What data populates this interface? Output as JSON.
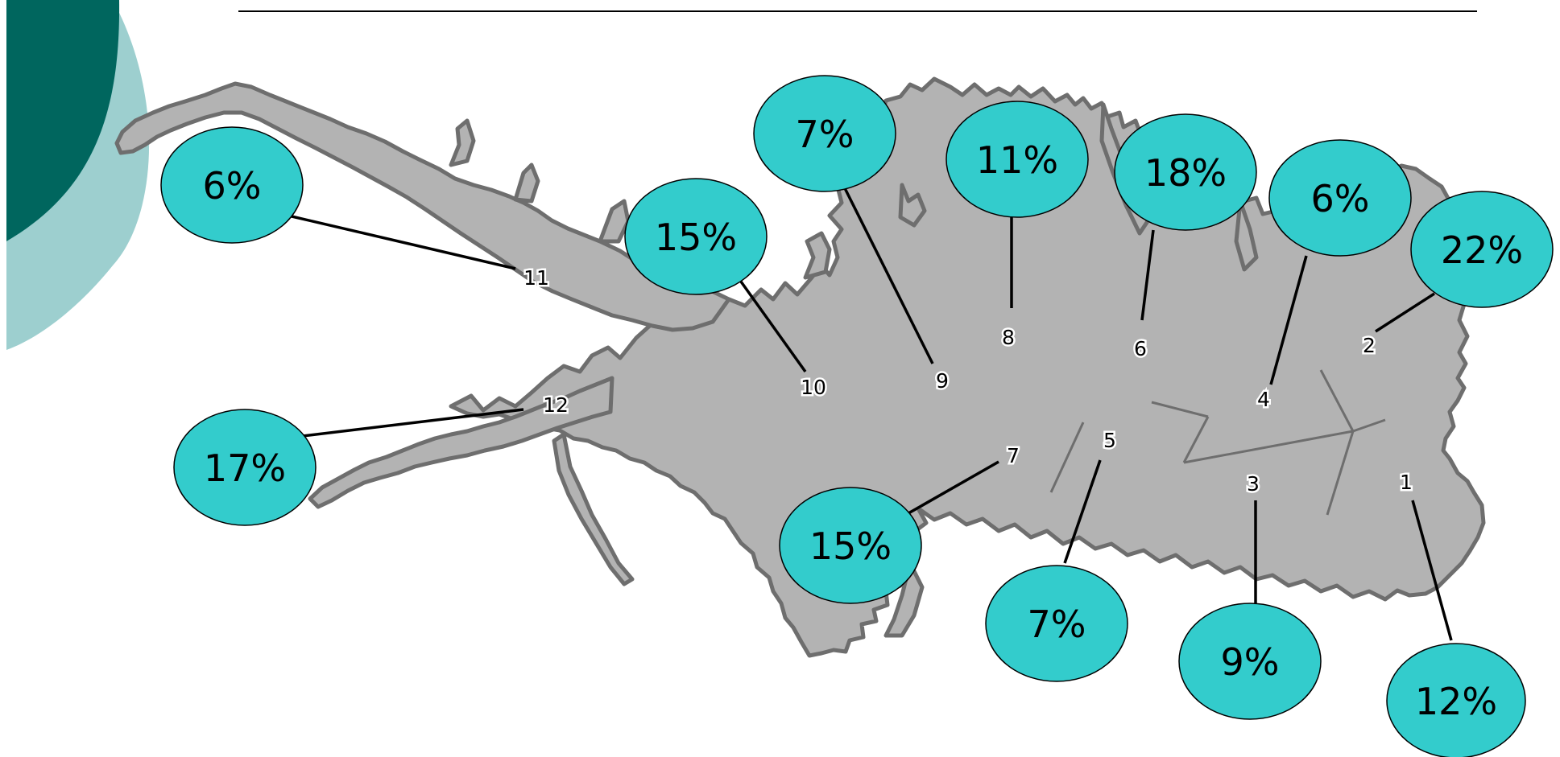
{
  "colors": {
    "background": "#ffffff",
    "corner_dark": "#00665e",
    "corner_light": "#9dcfcf",
    "title_rule": "#000000",
    "lake_fill": "#b3b3b3",
    "lake_edge": "#6e6e6e",
    "bubble_fill": "#33cccc",
    "bubble_stroke": "#000000",
    "leader_line": "#000000"
  },
  "zones": [
    {
      "id": "1",
      "percent": "12%"
    },
    {
      "id": "2",
      "percent": "22%"
    },
    {
      "id": "3",
      "percent": "9%"
    },
    {
      "id": "4",
      "percent": "6%"
    },
    {
      "id": "5",
      "percent": "7%"
    },
    {
      "id": "6",
      "percent": "18%"
    },
    {
      "id": "7",
      "percent": "15%"
    },
    {
      "id": "8",
      "percent": "11%"
    },
    {
      "id": "9",
      "percent": "7%"
    },
    {
      "id": "10",
      "percent": "15%"
    },
    {
      "id": "11",
      "percent": "6%"
    },
    {
      "id": "12",
      "percent": "17%"
    }
  ]
}
